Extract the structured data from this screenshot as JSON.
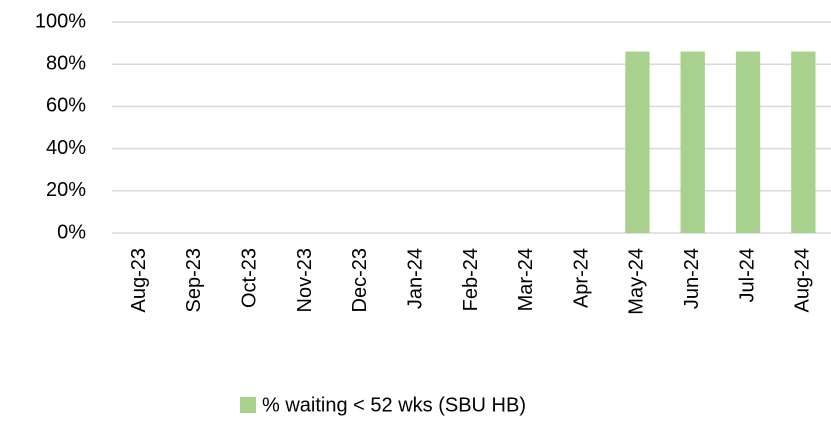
{
  "chart_data": {
    "type": "bar",
    "categories": [
      "Aug-23",
      "Sep-23",
      "Oct-23",
      "Nov-23",
      "Dec-23",
      "Jan-24",
      "Feb-24",
      "Mar-24",
      "Apr-24",
      "May-24",
      "Jun-24",
      "Jul-24",
      "Aug-24"
    ],
    "series": [
      {
        "name": "% waiting < 52 wks (SBU HB)",
        "color": "#a9d18e",
        "values": [
          null,
          null,
          null,
          null,
          null,
          null,
          null,
          null,
          null,
          86,
          86,
          86,
          86
        ]
      }
    ],
    "ylim": [
      0,
      100
    ],
    "yticks": [
      {
        "value": 0,
        "label": "0%"
      },
      {
        "value": 20,
        "label": "20%"
      },
      {
        "value": 40,
        "label": "40%"
      },
      {
        "value": 60,
        "label": "60%"
      },
      {
        "value": 80,
        "label": "80%"
      },
      {
        "value": 100,
        "label": "100%"
      }
    ],
    "grid": true,
    "legend": "bottom"
  }
}
